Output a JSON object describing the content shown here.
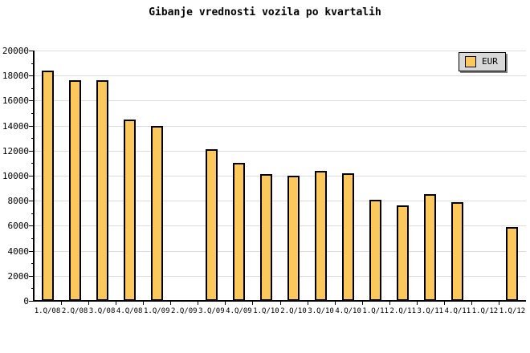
{
  "chart_data": {
    "type": "bar",
    "title": "Gibanje vrednosti vozila po kvartalih",
    "categories": [
      "1.Q/08",
      "2.Q/08",
      "3.Q/08",
      "4.Q/08",
      "1.Q/09",
      "2.Q/09",
      "3.Q/09",
      "4.Q/09",
      "1.Q/10",
      "2.Q/10",
      "3.Q/10",
      "4.Q/10",
      "1.Q/11",
      "2.Q/11",
      "3.Q/11",
      "4.Q/11",
      "1.Q/12",
      "1.Q/12"
    ],
    "series": [
      {
        "name": "EUR",
        "values": [
          18400,
          17600,
          17600,
          14500,
          14000,
          null,
          12100,
          11000,
          10100,
          10000,
          10400,
          10200,
          8100,
          7600,
          8500,
          7900,
          null,
          5900
        ]
      }
    ],
    "xlabel": "",
    "ylabel": "",
    "ylim": [
      0,
      20000
    ],
    "ytick_step": 2000,
    "yminor_step": 1000,
    "grid": "horizontal",
    "legend": {
      "label": "EUR",
      "position": "top-right"
    },
    "colors": {
      "bar_fill": "#fcc85c",
      "bar_border": "#000000",
      "gridline": "#dcdcdc",
      "axis": "#000000",
      "legend_bg": "#d8d8d8",
      "legend_shadow": "#808080",
      "background": "#ffffff",
      "text": "#000000"
    }
  }
}
